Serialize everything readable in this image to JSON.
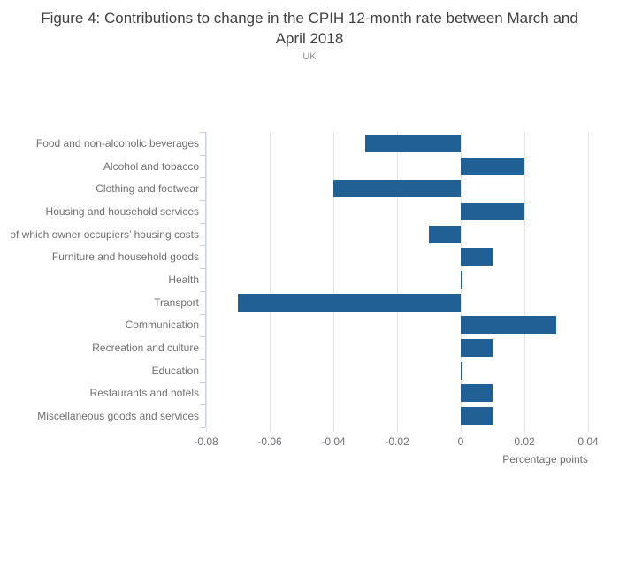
{
  "header": {
    "title": "Figure 4: Contributions to change in the CPIH 12-month rate between March and April 2018",
    "subtitle": "UK"
  },
  "chart_data": {
    "type": "bar",
    "orientation": "horizontal",
    "title": "Figure 4: Contributions to change in the CPIH 12-month rate between March and April 2018",
    "subtitle": "UK",
    "categories": [
      "Food and non-alcoholic beverages",
      "Alcohol and tobacco",
      "Clothing and footwear",
      "Housing and household services",
      "of which owner occupiers’ housing costs",
      "Furniture and household goods",
      "Health",
      "Transport",
      "Communication",
      "Recreation and culture",
      "Education",
      "Restaurants and hotels",
      "Miscellaneous goods and services"
    ],
    "values": [
      -0.03,
      0.02,
      -0.04,
      0.02,
      -0.01,
      0.01,
      0.0,
      -0.07,
      0.03,
      0.01,
      0.0,
      0.01,
      0.01
    ],
    "xlabel": "Percentage points",
    "ylabel": "",
    "xlim": [
      -0.08,
      0.04
    ],
    "xticks": [
      -0.08,
      -0.06,
      -0.04,
      -0.02,
      0,
      0.02,
      0.04
    ],
    "xtick_labels": [
      "-0.08",
      "-0.06",
      "-0.04",
      "-0.02",
      "0",
      "0.02",
      "0.04"
    ],
    "grid": true,
    "legend_position": "none",
    "bar_color": "#206095",
    "gridline_color": "#e6e6e6",
    "axis_line_color": "#c6cfe5",
    "label_color": "#707070",
    "tick_label_color": "#6e6e73",
    "title_color": "#414042"
  }
}
